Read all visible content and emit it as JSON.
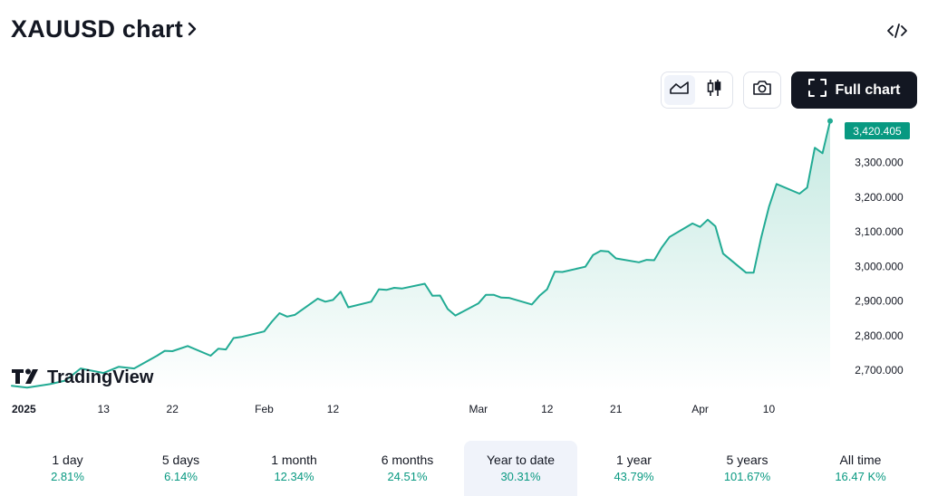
{
  "header": {
    "title": "XAUUSD chart",
    "chevron_icon": "chevron-right-icon",
    "embed_icon": "code-embed-icon"
  },
  "toolbar": {
    "area_icon": "area-chart-icon",
    "candles_icon": "candlestick-icon",
    "snapshot_icon": "camera-icon",
    "full_chart_label": "Full chart",
    "full_chart_icon": "fullscreen-icon"
  },
  "branding": {
    "logo_text": "TradingView",
    "logo_icon": "tradingview-logo-icon"
  },
  "colors": {
    "line": "#22ab94",
    "fill_top": "#c4e9e1",
    "fill_bottom": "#ffffff",
    "price_label_bg": "#089981",
    "positive": "#089981",
    "text": "#131722",
    "axis_text": "#131722"
  },
  "chart_data": {
    "type": "area",
    "symbol": "XAUUSD",
    "last_price_label": "3,420.405",
    "y_ticks": [
      "3,300.000",
      "3,200.000",
      "3,100.000",
      "3,000.000",
      "2,900.000",
      "2,800.000",
      "2,700.000"
    ],
    "y_tick_values": [
      3300,
      3200,
      3100,
      3000,
      2900,
      2800,
      2700
    ],
    "x_ticks": [
      {
        "label": "2025",
        "x": "2025-01-01",
        "bold": true
      },
      {
        "label": "13",
        "x": "2025-01-13"
      },
      {
        "label": "22",
        "x": "2025-01-22"
      },
      {
        "label": "Feb",
        "x": "2025-02-03"
      },
      {
        "label": "12",
        "x": "2025-02-12"
      },
      {
        "label": "Mar",
        "x": "2025-03-03"
      },
      {
        "label": "12",
        "x": "2025-03-12"
      },
      {
        "label": "21",
        "x": "2025-03-21"
      },
      {
        "label": "Apr",
        "x": "2025-04-01"
      },
      {
        "label": "10",
        "x": "2025-04-10"
      }
    ],
    "x": [
      "2025-01-01",
      "2025-01-03",
      "2025-01-06",
      "2025-01-08",
      "2025-01-10",
      "2025-01-13",
      "2025-01-15",
      "2025-01-17",
      "2025-01-20",
      "2025-01-21",
      "2025-01-22",
      "2025-01-24",
      "2025-01-27",
      "2025-01-28",
      "2025-01-29",
      "2025-01-30",
      "2025-01-31",
      "2025-02-03",
      "2025-02-04",
      "2025-02-05",
      "2025-02-06",
      "2025-02-07",
      "2025-02-10",
      "2025-02-11",
      "2025-02-12",
      "2025-02-13",
      "2025-02-14",
      "2025-02-17",
      "2025-02-18",
      "2025-02-19",
      "2025-02-20",
      "2025-02-21",
      "2025-02-24",
      "2025-02-25",
      "2025-02-26",
      "2025-02-27",
      "2025-02-28",
      "2025-03-03",
      "2025-03-04",
      "2025-03-05",
      "2025-03-06",
      "2025-03-07",
      "2025-03-10",
      "2025-03-11",
      "2025-03-12",
      "2025-03-13",
      "2025-03-14",
      "2025-03-17",
      "2025-03-18",
      "2025-03-19",
      "2025-03-20",
      "2025-03-21",
      "2025-03-24",
      "2025-03-25",
      "2025-03-26",
      "2025-03-27",
      "2025-03-28",
      "2025-03-31",
      "2025-04-01",
      "2025-04-02",
      "2025-04-03",
      "2025-04-04",
      "2025-04-07",
      "2025-04-08",
      "2025-04-09",
      "2025-04-10",
      "2025-04-11",
      "2025-04-14",
      "2025-04-15",
      "2025-04-16",
      "2025-04-17",
      "2025-04-18"
    ],
    "values": [
      2655,
      2650,
      2660,
      2670,
      2705,
      2692,
      2710,
      2705,
      2742,
      2756,
      2755,
      2770,
      2742,
      2762,
      2760,
      2793,
      2796,
      2812,
      2840,
      2865,
      2855,
      2860,
      2907,
      2898,
      2903,
      2927,
      2882,
      2898,
      2934,
      2932,
      2938,
      2936,
      2950,
      2915,
      2916,
      2877,
      2858,
      2893,
      2918,
      2918,
      2910,
      2909,
      2890,
      2915,
      2934,
      2985,
      2984,
      2999,
      3033,
      3045,
      3043,
      3023,
      3012,
      3019,
      3018,
      3055,
      3085,
      3124,
      3114,
      3135,
      3116,
      3037,
      2982,
      2982,
      3084,
      3172,
      3238,
      3210,
      3228,
      3343,
      3327,
      3420.405
    ],
    "ylim": [
      2640,
      3435
    ],
    "xlim": [
      "2025-01-01",
      "2025-04-18"
    ],
    "grid": false
  },
  "periods": [
    {
      "label": "1 day",
      "value": "2.81%"
    },
    {
      "label": "5 days",
      "value": "6.14%"
    },
    {
      "label": "1 month",
      "value": "12.34%"
    },
    {
      "label": "6 months",
      "value": "24.51%"
    },
    {
      "label": "Year to date",
      "value": "30.31%",
      "active": true
    },
    {
      "label": "1 year",
      "value": "43.79%"
    },
    {
      "label": "5 years",
      "value": "101.67%"
    },
    {
      "label": "All time",
      "value": "16.47 K%"
    }
  ]
}
